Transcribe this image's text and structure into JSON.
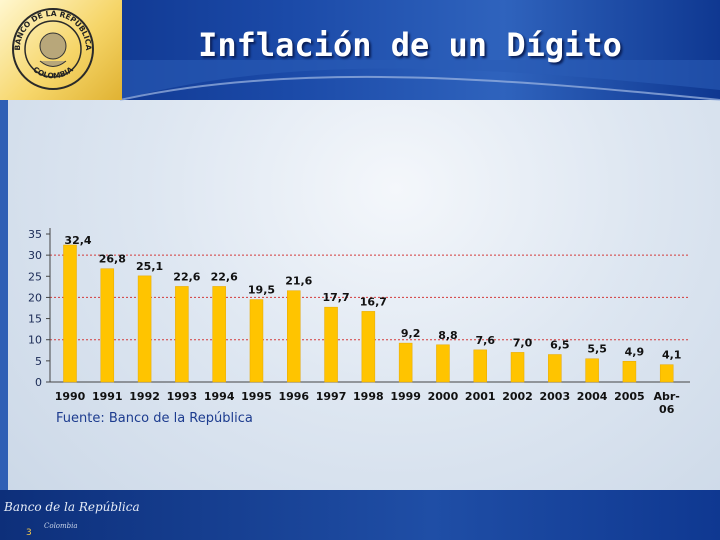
{
  "header": {
    "title": "Inflación de un Dígito"
  },
  "logo": {
    "seal_text": "BANCO DE LA REPÚBLICA",
    "seal_country": "COLOMBIA"
  },
  "footer": {
    "bank_name": "Banco de la República",
    "bank_sub": "Colombia",
    "page_number": "3"
  },
  "source": "Fuente: Banco de la República",
  "colors": {
    "bar": "#ffc400",
    "bar_edge": "#e7a800",
    "gridline": "#d33a3a",
    "axis": "#444444"
  },
  "chart_data": {
    "type": "bar",
    "title": "Inflación de un Dígito",
    "categories": [
      "1990",
      "1991",
      "1992",
      "1993",
      "1994",
      "1995",
      "1996",
      "1997",
      "1998",
      "1999",
      "2000",
      "2001",
      "2002",
      "2003",
      "2004",
      "2005",
      "Abr-06"
    ],
    "category_lines": [
      [
        "1990"
      ],
      [
        "1991"
      ],
      [
        "1992"
      ],
      [
        "1993"
      ],
      [
        "1994"
      ],
      [
        "1995"
      ],
      [
        "1996"
      ],
      [
        "1997"
      ],
      [
        "1998"
      ],
      [
        "1999"
      ],
      [
        "2000"
      ],
      [
        "2001"
      ],
      [
        "2002"
      ],
      [
        "2003"
      ],
      [
        "2004"
      ],
      [
        "2005"
      ],
      [
        "Abr-",
        "06"
      ]
    ],
    "values": [
      32.4,
      26.8,
      25.1,
      22.6,
      22.6,
      19.5,
      21.6,
      17.7,
      16.7,
      9.2,
      8.8,
      7.6,
      7.0,
      6.5,
      5.5,
      4.9,
      4.1
    ],
    "value_labels": [
      "32,4",
      "26,8",
      "25,1",
      "22,6",
      "22,6",
      "19,5",
      "21,6",
      "17,7",
      "16,7",
      "9,2",
      "8,8",
      "7,6",
      "7,0",
      "6,5",
      "5,5",
      "4,9",
      "4,1"
    ],
    "yticks": [
      0,
      5,
      10,
      15,
      20,
      25,
      30,
      35
    ],
    "ylim": [
      0,
      35
    ],
    "gridlines": [
      10,
      20,
      30
    ],
    "xlabel": "",
    "ylabel": ""
  }
}
